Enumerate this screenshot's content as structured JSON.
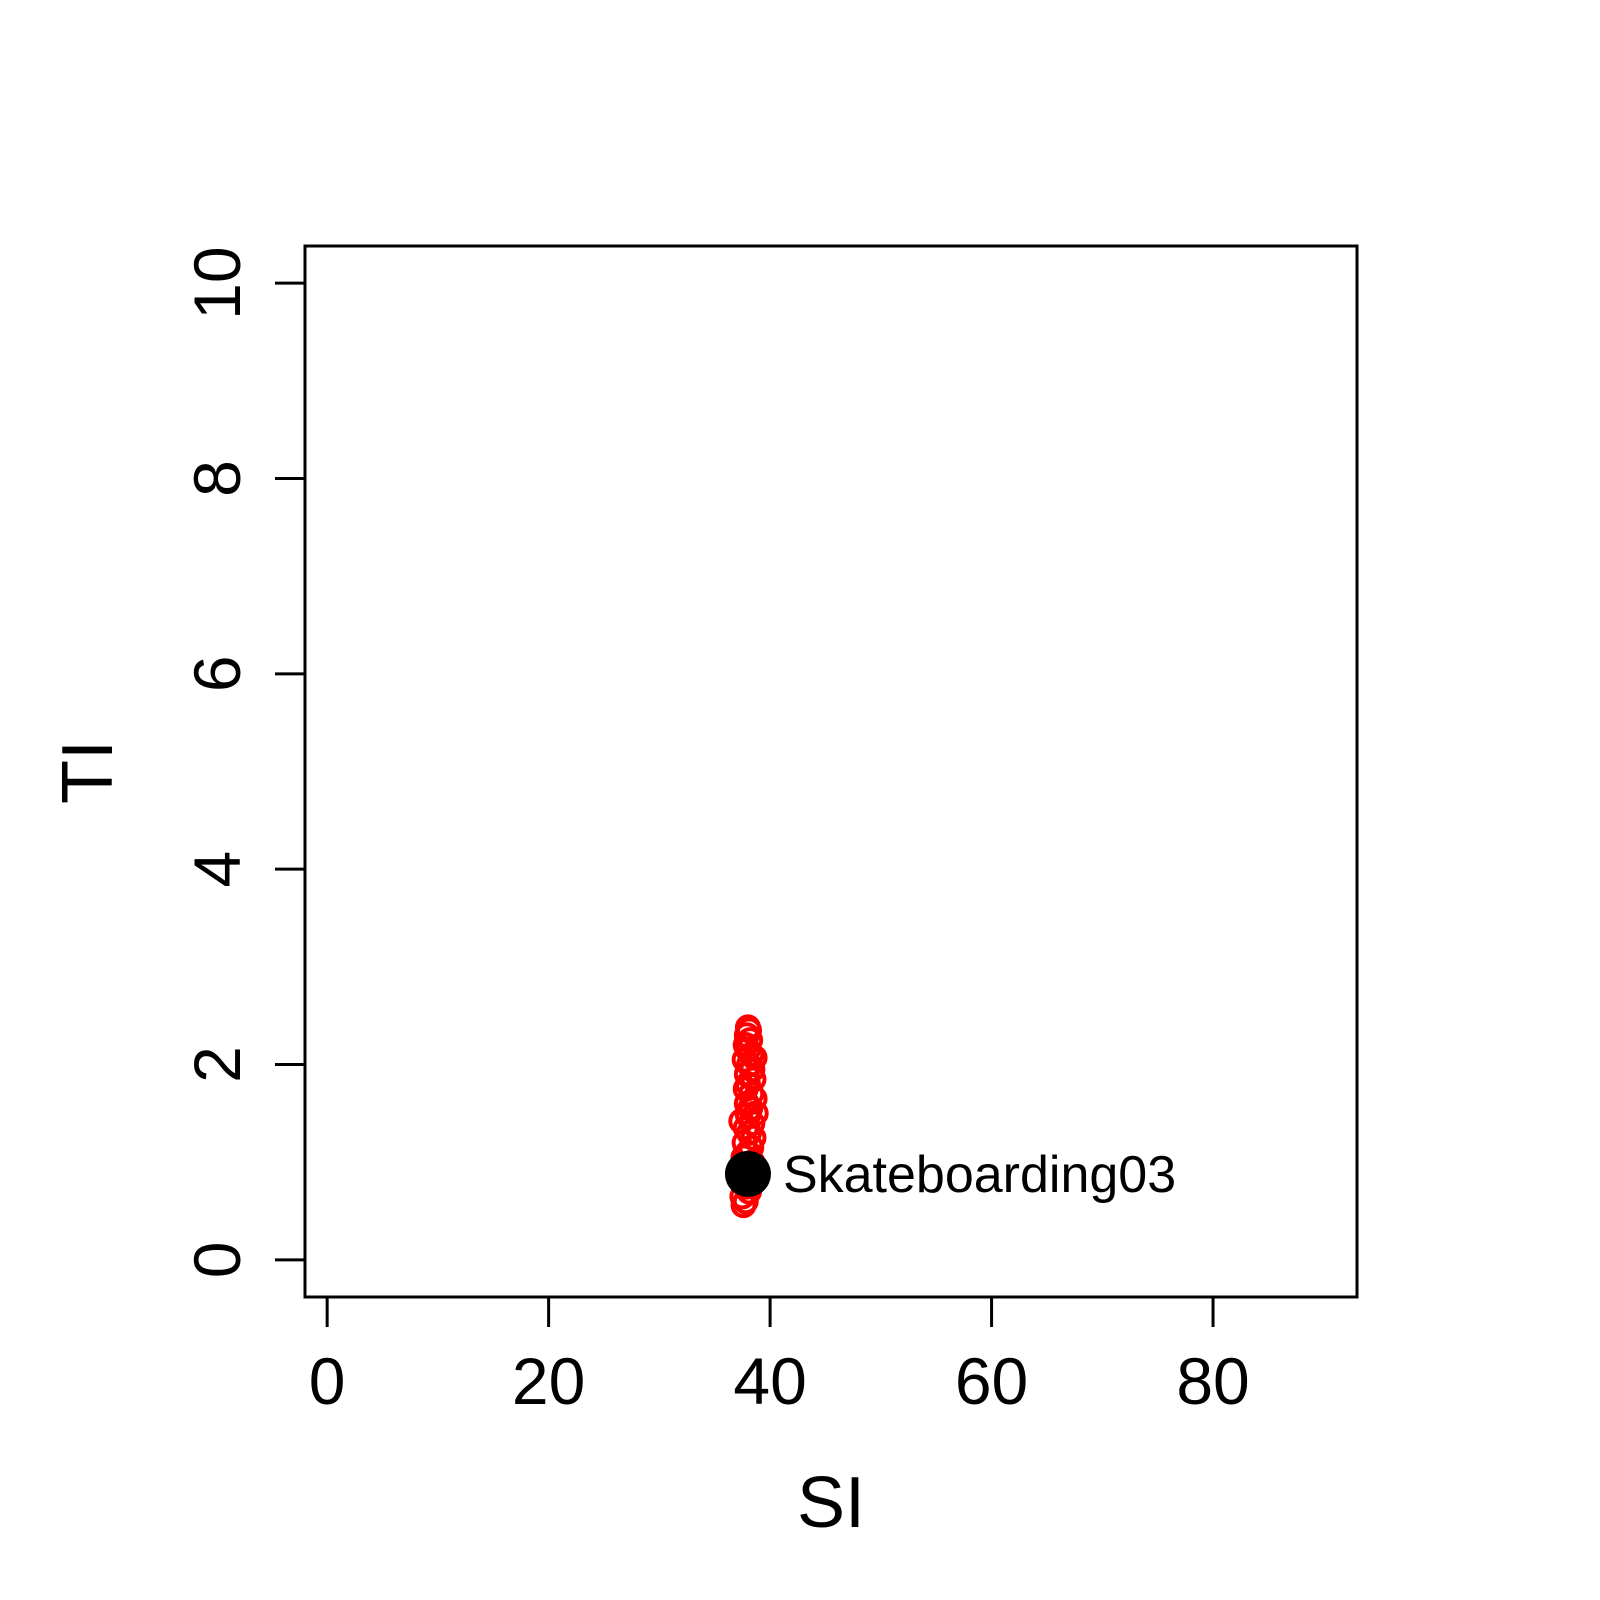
{
  "chart_data": {
    "type": "scatter",
    "title": "",
    "xlabel": "SI",
    "ylabel": "TI",
    "xlim": [
      -2,
      93
    ],
    "ylim": [
      -0.38,
      10.38
    ],
    "xticks": [
      0,
      20,
      40,
      60,
      80
    ],
    "yticks": [
      0,
      2,
      4,
      6,
      8,
      10
    ],
    "grid": false,
    "series": [
      {
        "color": "#ff0000",
        "marker": "open-circle",
        "points": [
          {
            "x": 38.0,
            "y": 2.38
          },
          {
            "x": 38.1,
            "y": 2.35
          },
          {
            "x": 37.9,
            "y": 2.3
          },
          {
            "x": 38.2,
            "y": 2.25
          },
          {
            "x": 37.8,
            "y": 2.2
          },
          {
            "x": 38.0,
            "y": 2.15
          },
          {
            "x": 38.3,
            "y": 2.1
          },
          {
            "x": 38.6,
            "y": 2.07
          },
          {
            "x": 37.7,
            "y": 2.05
          },
          {
            "x": 38.1,
            "y": 2.0
          },
          {
            "x": 38.4,
            "y": 1.95
          },
          {
            "x": 37.9,
            "y": 1.9
          },
          {
            "x": 38.5,
            "y": 1.85
          },
          {
            "x": 38.0,
            "y": 1.8
          },
          {
            "x": 37.8,
            "y": 1.75
          },
          {
            "x": 38.3,
            "y": 1.7
          },
          {
            "x": 38.6,
            "y": 1.65
          },
          {
            "x": 37.9,
            "y": 1.6
          },
          {
            "x": 38.2,
            "y": 1.55
          },
          {
            "x": 38.7,
            "y": 1.5
          },
          {
            "x": 38.0,
            "y": 1.48
          },
          {
            "x": 37.4,
            "y": 1.42
          },
          {
            "x": 38.4,
            "y": 1.4
          },
          {
            "x": 37.8,
            "y": 1.35
          },
          {
            "x": 38.1,
            "y": 1.3
          },
          {
            "x": 38.5,
            "y": 1.25
          },
          {
            "x": 37.7,
            "y": 1.2
          },
          {
            "x": 38.3,
            "y": 1.15
          },
          {
            "x": 38.0,
            "y": 1.1
          },
          {
            "x": 37.6,
            "y": 1.05
          },
          {
            "x": 38.4,
            "y": 1.0
          },
          {
            "x": 37.9,
            "y": 0.95
          },
          {
            "x": 38.2,
            "y": 0.9
          },
          {
            "x": 37.6,
            "y": 0.85
          },
          {
            "x": 38.5,
            "y": 0.8
          },
          {
            "x": 37.8,
            "y": 0.75
          },
          {
            "x": 38.1,
            "y": 0.7
          },
          {
            "x": 37.5,
            "y": 0.65
          },
          {
            "x": 37.8,
            "y": 0.6
          },
          {
            "x": 37.6,
            "y": 0.56
          }
        ]
      },
      {
        "color": "#000000",
        "marker": "filled-circle",
        "points": [
          {
            "x": 38.0,
            "y": 0.88,
            "label": "Skateboarding03"
          }
        ]
      }
    ]
  }
}
